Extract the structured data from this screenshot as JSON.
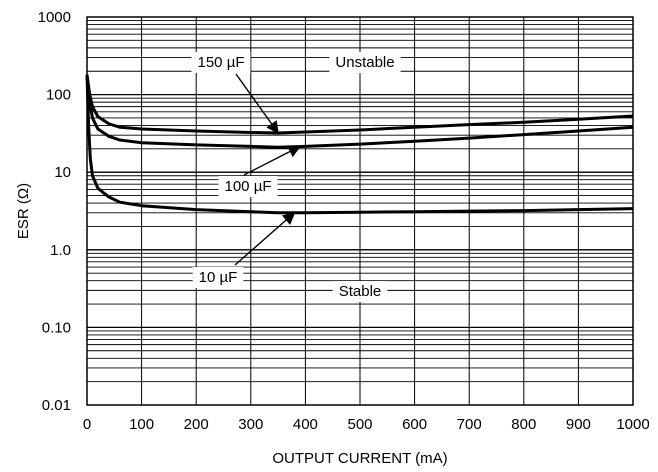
{
  "chart_data": {
    "type": "line",
    "title": "",
    "xlabel": "OUTPUT CURRENT (mA)",
    "ylabel": "ESR (Ω)",
    "xscale": "linear",
    "yscale": "log",
    "xlim": [
      0,
      1000
    ],
    "ylim": [
      0.01,
      1000
    ],
    "x_ticks": [
      0,
      100,
      200,
      300,
      400,
      500,
      600,
      700,
      800,
      900,
      1000
    ],
    "x_tick_labels": [
      "0",
      "100",
      "200",
      "300",
      "400",
      "500",
      "600",
      "700",
      "800",
      "900",
      "1000"
    ],
    "y_ticks": [
      0.01,
      0.1,
      1,
      10,
      100,
      1000
    ],
    "y_tick_labels": [
      "0.01",
      "0.10",
      "1.0",
      "10",
      "100",
      "1000"
    ],
    "grid": true,
    "legend": "none",
    "series": [
      {
        "name": "150 µF",
        "x": [
          0,
          5,
          10,
          20,
          40,
          60,
          100,
          200,
          300,
          350,
          400,
          500,
          600,
          700,
          800,
          900,
          1000
        ],
        "y": [
          180,
          100,
          70,
          52,
          42,
          38,
          36,
          34,
          32.5,
          32,
          33,
          35,
          38,
          41,
          44,
          48,
          53
        ]
      },
      {
        "name": "100 µF",
        "x": [
          0,
          5,
          10,
          20,
          40,
          60,
          100,
          200,
          300,
          350,
          400,
          500,
          600,
          700,
          800,
          900,
          1000
        ],
        "y": [
          170,
          80,
          50,
          36,
          29,
          26,
          24,
          22.5,
          21.5,
          21,
          21.5,
          23,
          25,
          27.5,
          30.5,
          34,
          38
        ]
      },
      {
        "name": "10 µF",
        "x": [
          0,
          3,
          6,
          10,
          20,
          40,
          60,
          100,
          200,
          300,
          350,
          400,
          500,
          600,
          700,
          800,
          900,
          1000
        ],
        "y": [
          180,
          40,
          15,
          9,
          6.2,
          4.8,
          4.1,
          3.7,
          3.3,
          3.1,
          3.0,
          3.0,
          3.05,
          3.1,
          3.15,
          3.2,
          3.3,
          3.4
        ]
      }
    ],
    "annotations": [
      {
        "text": "150 µF",
        "points_to": {
          "x": 350,
          "y": 32
        }
      },
      {
        "text": "Unstable"
      },
      {
        "text": "100 µF",
        "points_to": {
          "x": 390,
          "y": 21.5
        }
      },
      {
        "text": "10 µF",
        "points_to": {
          "x": 380,
          "y": 3.0
        }
      },
      {
        "text": "Stable"
      }
    ]
  }
}
